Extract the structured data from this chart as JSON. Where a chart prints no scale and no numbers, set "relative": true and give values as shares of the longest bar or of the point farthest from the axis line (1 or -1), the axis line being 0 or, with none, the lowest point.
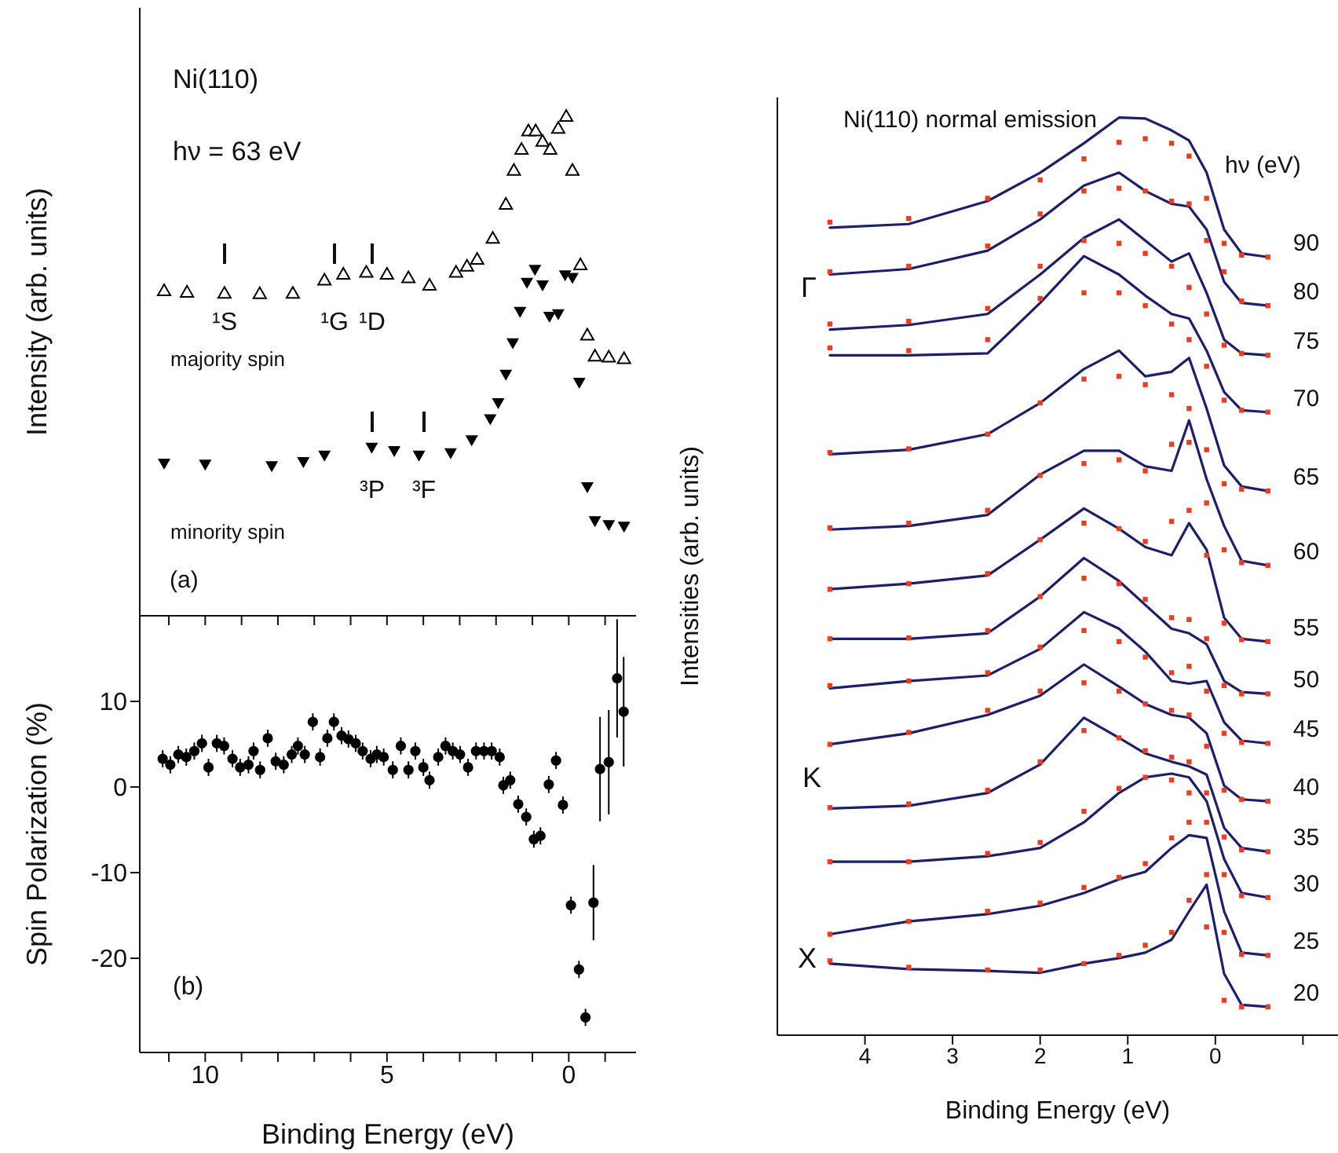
{
  "chart_data": [
    {
      "type": "scatter",
      "relative": true,
      "ylabel": "Intensity (arb. units)",
      "xlim": [
        11.8,
        -1.85
      ],
      "xticks": [
        {
          "value": 11,
          "label": null
        },
        10,
        {
          "value": 9,
          "label": null
        },
        {
          "value": 8,
          "label": null
        },
        {
          "value": 7,
          "label": null
        },
        {
          "value": 6,
          "label": null
        },
        5,
        {
          "value": 4,
          "label": null
        },
        {
          "value": 3,
          "label": null
        },
        {
          "value": 2,
          "label": null
        },
        {
          "value": 1,
          "label": null
        },
        0,
        {
          "value": -1,
          "label": null
        }
      ],
      "tick_labels": false,
      "marker": "triangle",
      "annotations": [
        "Ni(110)",
        "hν = 63 eV",
        "(a)",
        "¹S",
        "¹G",
        "¹D",
        "³P",
        "³F"
      ],
      "series": [
        {
          "name": "majority spin",
          "color": "#000000",
          "x": [
            11.13,
            10.5,
            9.47,
            8.5,
            7.59,
            6.72,
            6.2,
            5.57,
            5.0,
            4.41,
            3.83,
            3.1,
            2.8,
            2.52,
            2.09,
            1.73,
            1.51,
            1.3,
            1.11,
            0.91,
            0.72,
            0.51,
            0.29,
            0.07,
            -0.1,
            -0.32,
            -0.51,
            -0.72,
            -1.1,
            -1.52
          ],
          "values": [
            0.651,
            0.648,
            0.646,
            0.645,
            0.646,
            0.672,
            0.684,
            0.688,
            0.684,
            0.677,
            0.662,
            0.688,
            0.7,
            0.714,
            0.756,
            0.824,
            0.892,
            0.934,
            0.971,
            0.971,
            0.95,
            0.934,
            0.976,
            1.0,
            0.892,
            0.703,
            0.562,
            0.52,
            0.518,
            0.515
          ]
        },
        {
          "name": "minority spin",
          "color": "#000000",
          "x": [
            11.13,
            10.0,
            8.17,
            7.3,
            6.72,
            5.42,
            4.8,
            4.12,
            3.25,
            2.67,
            2.16,
            1.94,
            1.73,
            1.54,
            1.34,
            1.15,
            0.93,
            0.72,
            0.53,
            0.29,
            0.1,
            -0.1,
            -0.29,
            -0.51,
            -0.72,
            -1.1,
            -1.52
          ],
          "values": [
            0.305,
            0.303,
            0.3,
            0.308,
            0.321,
            0.337,
            0.33,
            0.321,
            0.326,
            0.352,
            0.394,
            0.426,
            0.483,
            0.546,
            0.609,
            0.667,
            0.693,
            0.662,
            0.599,
            0.604,
            0.682,
            0.677,
            0.467,
            0.258,
            0.19,
            0.182,
            0.179
          ]
        }
      ]
    },
    {
      "type": "scatter",
      "xlabel": "Binding Energy (eV)",
      "ylabel": "Spin Polarization (%)",
      "xlim": [
        11.8,
        -1.85
      ],
      "xticks": [
        {
          "value": 11,
          "label": null
        },
        10,
        {
          "value": 9,
          "label": null
        },
        {
          "value": 8,
          "label": null
        },
        {
          "value": 7,
          "label": null
        },
        {
          "value": 6,
          "label": null
        },
        5,
        {
          "value": 4,
          "label": null
        },
        {
          "value": 3,
          "label": null
        },
        {
          "value": 2,
          "label": null
        },
        {
          "value": 1,
          "label": null
        },
        0,
        {
          "value": -1,
          "label": null
        }
      ],
      "ylim": [
        -31,
        20
      ],
      "yticks": [
        -20,
        -10,
        0,
        10
      ],
      "marker": "circle",
      "annotations": [
        "(b)"
      ],
      "series": [
        {
          "color": "#000000",
          "x": [
            11.17,
            10.96,
            10.74,
            10.52,
            10.3,
            10.09,
            9.91,
            9.68,
            9.48,
            9.25,
            9.04,
            8.81,
            8.67,
            8.49,
            8.28,
            8.06,
            7.84,
            7.62,
            7.45,
            7.26,
            7.04,
            6.84,
            6.64,
            6.46,
            6.25,
            6.06,
            5.86,
            5.67,
            5.45,
            5.28,
            5.09,
            4.84,
            4.62,
            4.41,
            4.22,
            4.0,
            3.83,
            3.59,
            3.39,
            3.19,
            2.99,
            2.77,
            2.55,
            2.33,
            2.12,
            1.9,
            1.8,
            1.61,
            1.39,
            1.17,
            0.96,
            0.78,
            0.55,
            0.35,
            0.16,
            -0.06,
            -0.28,
            -0.46,
            -0.68,
            -0.86,
            -1.1,
            -1.33,
            -1.51
          ],
          "values": [
            3.3,
            2.6,
            3.8,
            3.5,
            4.2,
            5.1,
            2.3,
            5.1,
            4.8,
            3.3,
            2.3,
            2.6,
            4.2,
            2.0,
            5.7,
            3.0,
            2.6,
            3.8,
            4.8,
            3.8,
            7.6,
            3.5,
            5.7,
            7.6,
            6.0,
            5.6,
            5.1,
            4.2,
            3.3,
            3.8,
            3.5,
            2.0,
            4.8,
            2.0,
            4.2,
            2.3,
            0.8,
            3.5,
            4.8,
            4.2,
            3.8,
            2.3,
            4.2,
            4.2,
            4.2,
            3.5,
            0.2,
            0.8,
            -2.0,
            -3.5,
            -6.1,
            -5.7,
            0.3,
            3.1,
            -2.1,
            -13.8,
            -21.3,
            -26.9,
            -13.5,
            2.1,
            2.9,
            12.7,
            8.8
          ],
          "errors": [
            1,
            1,
            1,
            1,
            1,
            1,
            1,
            1,
            1,
            1,
            1,
            1,
            1,
            1,
            1,
            1,
            1,
            1,
            1,
            1,
            1,
            1,
            1,
            1,
            1,
            1,
            1,
            1,
            1,
            1,
            1,
            1,
            1,
            1,
            1,
            1,
            1,
            1,
            1,
            1,
            1,
            1,
            1,
            1,
            1,
            1,
            1,
            1,
            1,
            1,
            1,
            1,
            1,
            1,
            1,
            1,
            1,
            1,
            4.4,
            6.1,
            6.1,
            6.9,
            6.4
          ]
        }
      ]
    },
    {
      "type": "line",
      "relative": true,
      "title": "Ni(110) normal emission",
      "xlabel": "Binding Energy  (eV)",
      "ylabel": "Intensities  (arb. units)",
      "xlim": [
        5.0,
        -1.4
      ],
      "xticks": [
        4,
        3,
        2,
        1,
        0,
        {
          "value": -1,
          "label": null
        }
      ],
      "marker": "none",
      "x": [
        4.4,
        3.5,
        2.6,
        2.0,
        1.5,
        1.1,
        0.8,
        0.5,
        0.3,
        0.1,
        -0.1,
        -0.3,
        -0.6
      ],
      "annotations": [
        "hν (eV)",
        "Γ",
        "K",
        "X"
      ],
      "series": [
        {
          "name": "90",
          "color": "#1c1f6b",
          "values": [
            0.88,
            0.884,
            0.909,
            0.94,
            0.972,
            1.0,
            0.999,
            0.986,
            0.975,
            0.94,
            0.878,
            0.852,
            0.848
          ]
        },
        {
          "type": "scatter",
          "marker": "square",
          "color": "#f03c1e",
          "values": [
            0.886,
            0.89,
            0.912,
            0.932,
            0.955,
            0.973,
            0.977,
            0.972,
            0.958,
            0.912,
            0.863,
            0.85,
            0.848
          ]
        },
        {
          "name": "80",
          "color": "#1c1f6b",
          "values": [
            0.829,
            0.835,
            0.855,
            0.889,
            0.926,
            0.94,
            0.92,
            0.906,
            0.903,
            0.878,
            0.821,
            0.798,
            0.795
          ]
        },
        {
          "type": "scatter",
          "marker": "square",
          "color": "#f03c1e",
          "values": [
            0.832,
            0.838,
            0.86,
            0.895,
            0.92,
            0.923,
            0.92,
            0.909,
            0.906,
            0.866,
            0.832,
            0.8,
            0.795
          ]
        },
        {
          "name": "75",
          "color": "#1c1f6b",
          "values": [
            0.769,
            0.774,
            0.786,
            0.829,
            0.869,
            0.889,
            0.866,
            0.843,
            0.852,
            0.809,
            0.758,
            0.743,
            0.741
          ]
        },
        {
          "type": "scatter",
          "marker": "square",
          "color": "#f03c1e",
          "values": [
            0.775,
            0.778,
            0.792,
            0.838,
            0.866,
            0.863,
            0.852,
            0.838,
            0.815,
            0.786,
            0.752,
            0.743,
            0.741
          ]
        },
        {
          "name": "70",
          "color": "#1c1f6b",
          "values": [
            0.741,
            0.741,
            0.743,
            0.798,
            0.849,
            0.829,
            0.806,
            0.786,
            0.781,
            0.746,
            0.701,
            0.681,
            0.679
          ]
        },
        {
          "type": "scatter",
          "marker": "square",
          "color": "#f03c1e",
          "values": [
            0.749,
            0.746,
            0.758,
            0.803,
            0.809,
            0.809,
            0.795,
            0.775,
            0.758,
            0.729,
            0.692,
            0.681,
            0.679
          ]
        },
        {
          "name": "65",
          "color": "#1c1f6b",
          "values": [
            0.633,
            0.638,
            0.655,
            0.689,
            0.726,
            0.746,
            0.718,
            0.723,
            0.738,
            0.683,
            0.621,
            0.598,
            0.593
          ]
        },
        {
          "type": "scatter",
          "marker": "square",
          "color": "#f03c1e",
          "values": [
            0.635,
            0.639,
            0.655,
            0.689,
            0.715,
            0.718,
            0.709,
            0.698,
            0.683,
            0.638,
            0.601,
            0.595,
            0.593
          ]
        },
        {
          "name": "60",
          "color": "#1c1f6b",
          "values": [
            0.551,
            0.555,
            0.567,
            0.611,
            0.637,
            0.637,
            0.62,
            0.615,
            0.67,
            0.606,
            0.555,
            0.517,
            0.512
          ]
        },
        {
          "type": "scatter",
          "marker": "square",
          "color": "#f03c1e",
          "values": [
            0.553,
            0.558,
            0.572,
            0.61,
            0.623,
            0.627,
            0.615,
            0.644,
            0.646,
            0.58,
            0.529,
            0.515,
            0.512
          ]
        },
        {
          "name": "55",
          "color": "#1c1f6b",
          "values": [
            0.486,
            0.492,
            0.501,
            0.54,
            0.574,
            0.552,
            0.532,
            0.523,
            0.558,
            0.529,
            0.455,
            0.432,
            0.429
          ]
        },
        {
          "type": "scatter",
          "marker": "square",
          "color": "#f03c1e",
          "values": [
            0.486,
            0.492,
            0.503,
            0.54,
            0.558,
            0.552,
            0.538,
            0.56,
            0.572,
            0.523,
            0.449,
            0.431,
            0.429
          ]
        },
        {
          "name": "50",
          "color": "#1c1f6b",
          "values": [
            0.432,
            0.432,
            0.438,
            0.478,
            0.52,
            0.495,
            0.469,
            0.443,
            0.438,
            0.426,
            0.386,
            0.374,
            0.372
          ]
        },
        {
          "type": "scatter",
          "marker": "square",
          "color": "#f03c1e",
          "values": [
            0.432,
            0.433,
            0.441,
            0.478,
            0.498,
            0.492,
            0.475,
            0.455,
            0.453,
            0.432,
            0.381,
            0.372,
            0.372
          ]
        },
        {
          "name": "45",
          "color": "#1c1f6b",
          "values": [
            0.378,
            0.386,
            0.392,
            0.421,
            0.461,
            0.443,
            0.418,
            0.386,
            0.383,
            0.386,
            0.341,
            0.321,
            0.318
          ]
        },
        {
          "type": "scatter",
          "marker": "square",
          "color": "#f03c1e",
          "values": [
            0.381,
            0.386,
            0.395,
            0.423,
            0.441,
            0.429,
            0.412,
            0.395,
            0.402,
            0.375,
            0.329,
            0.319,
            0.318
          ]
        },
        {
          "name": "40",
          "color": "#1c1f6b",
          "values": [
            0.317,
            0.329,
            0.349,
            0.37,
            0.404,
            0.38,
            0.361,
            0.349,
            0.346,
            0.329,
            0.272,
            0.257,
            0.255
          ]
        },
        {
          "type": "scatter",
          "marker": "square",
          "color": "#f03c1e",
          "values": [
            0.317,
            0.33,
            0.354,
            0.375,
            0.384,
            0.375,
            0.361,
            0.354,
            0.349,
            0.315,
            0.267,
            0.257,
            0.255
          ]
        },
        {
          "name": "35",
          "color": "#1c1f6b",
          "values": [
            0.247,
            0.25,
            0.264,
            0.295,
            0.346,
            0.324,
            0.307,
            0.298,
            0.293,
            0.284,
            0.226,
            0.204,
            0.2
          ]
        },
        {
          "type": "scatter",
          "marker": "square",
          "color": "#f03c1e",
          "values": [
            0.248,
            0.252,
            0.267,
            0.298,
            0.332,
            0.324,
            0.31,
            0.303,
            0.298,
            0.264,
            0.216,
            0.202,
            0.2
          ]
        },
        {
          "name": "30",
          "color": "#1c1f6b",
          "values": [
            0.189,
            0.189,
            0.195,
            0.204,
            0.232,
            0.264,
            0.281,
            0.285,
            0.281,
            0.255,
            0.192,
            0.155,
            0.15
          ]
        },
        {
          "type": "scatter",
          "marker": "square",
          "color": "#f03c1e",
          "values": [
            0.189,
            0.189,
            0.198,
            0.21,
            0.244,
            0.269,
            0.281,
            0.278,
            0.264,
            0.232,
            0.175,
            0.152,
            0.15
          ]
        },
        {
          "name": "25",
          "color": "#1c1f6b",
          "values": [
            0.11,
            0.124,
            0.132,
            0.141,
            0.155,
            0.17,
            0.178,
            0.204,
            0.218,
            0.215,
            0.135,
            0.09,
            0.087
          ]
        },
        {
          "type": "scatter",
          "marker": "square",
          "color": "#f03c1e",
          "values": [
            0.11,
            0.124,
            0.135,
            0.144,
            0.161,
            0.172,
            0.187,
            0.215,
            0.232,
            0.175,
            0.112,
            0.088,
            0.087
          ]
        },
        {
          "name": "20",
          "color": "#1c1f6b",
          "values": [
            0.078,
            0.072,
            0.07,
            0.068,
            0.078,
            0.084,
            0.09,
            0.104,
            0.135,
            0.164,
            0.067,
            0.033,
            0.031
          ]
        },
        {
          "type": "scatter",
          "marker": "square",
          "color": "#f03c1e",
          "values": [
            0.081,
            0.074,
            0.071,
            0.071,
            0.078,
            0.087,
            0.098,
            0.112,
            0.147,
            0.118,
            0.038,
            0.031,
            0.031
          ]
        }
      ]
    }
  ]
}
